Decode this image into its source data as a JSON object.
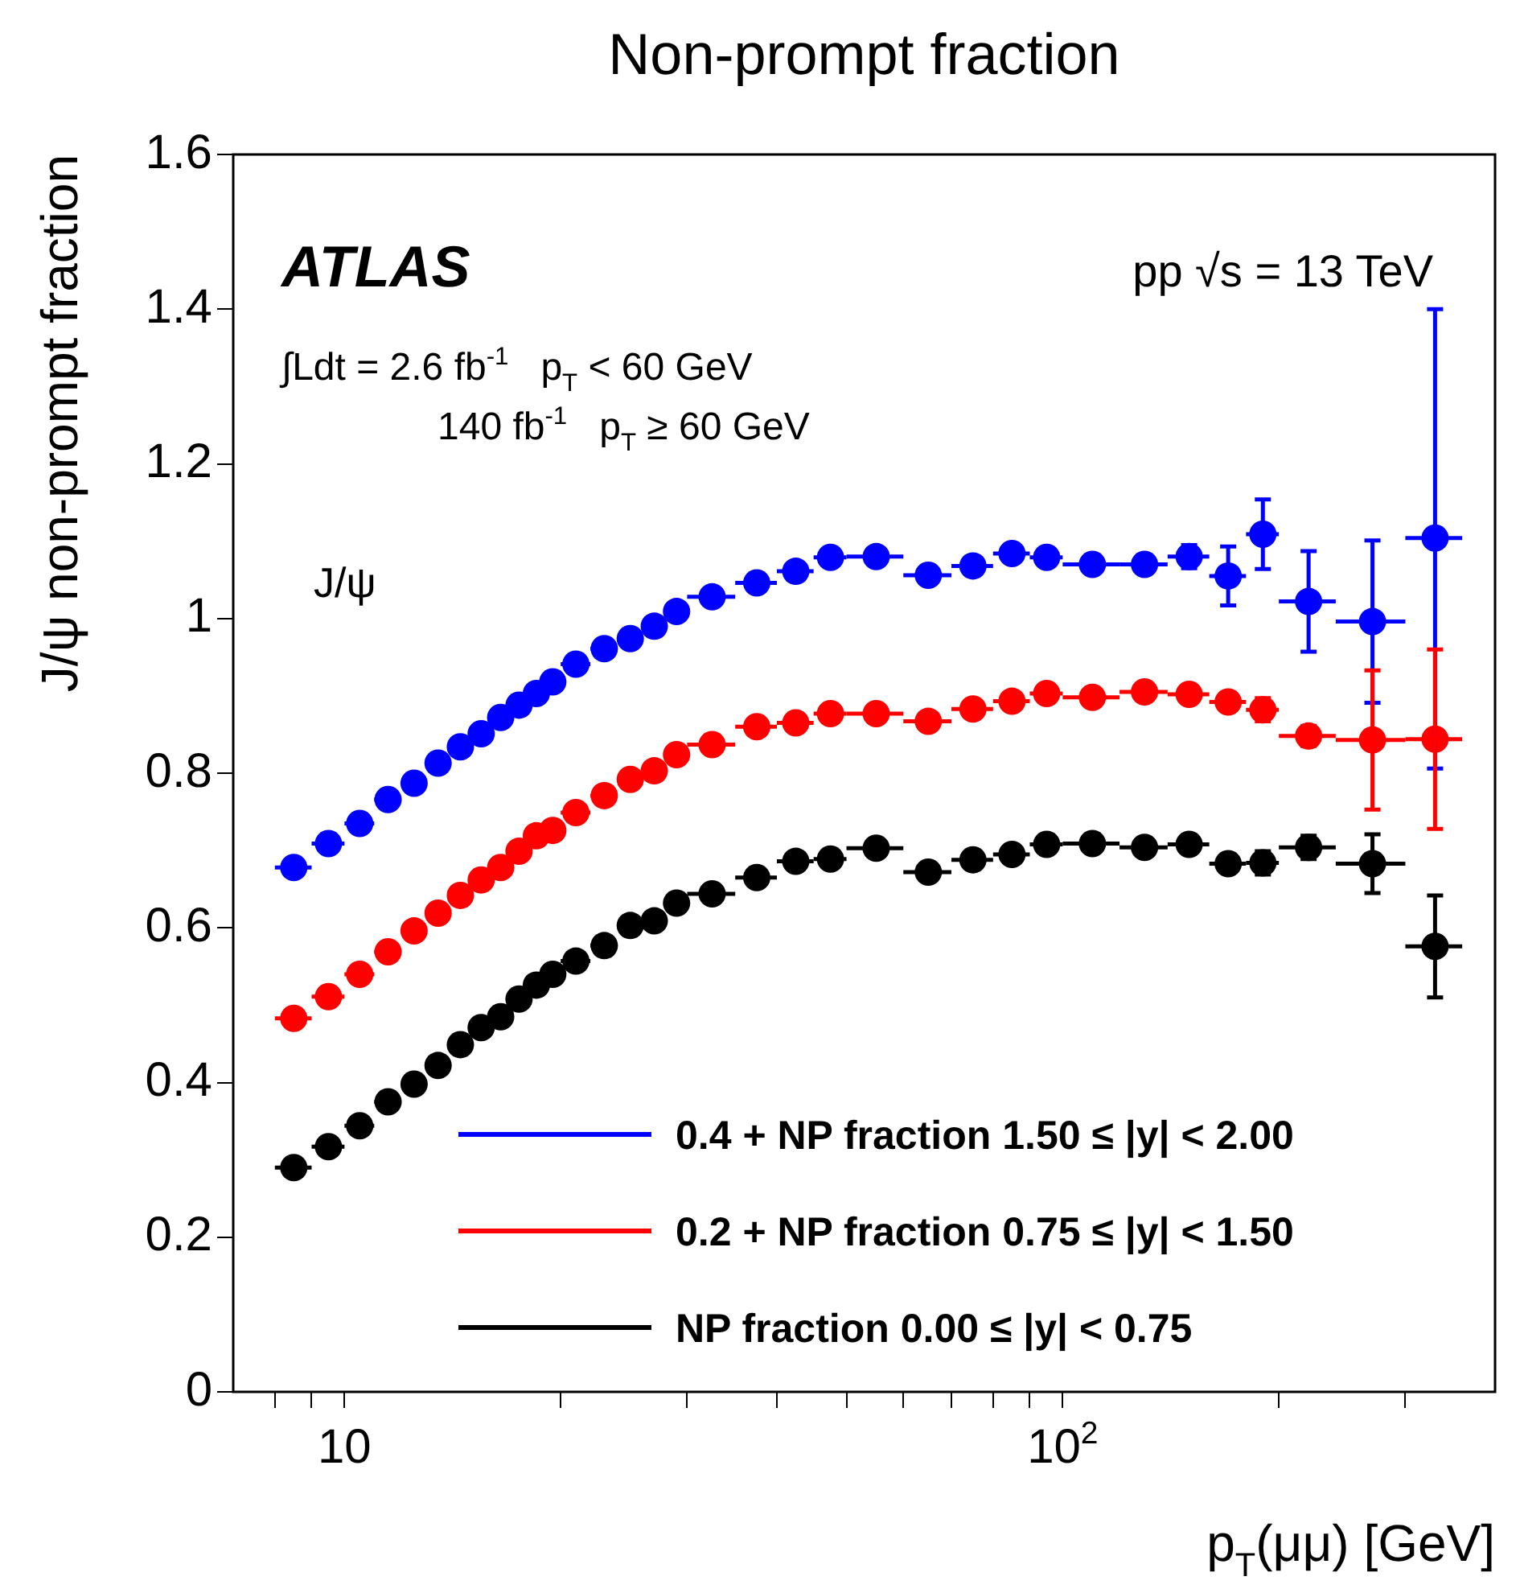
{
  "chart_data": {
    "type": "scatter",
    "title": "Non-prompt fraction",
    "xlabel": "p$_{T}$(μμ) [GeV]",
    "ylabel": "J/ψ non-prompt fraction",
    "annotations": [
      "ATLAS",
      "pp √s = 13 TeV",
      "∫Ldt = 2.6 fb$^{-1}$   p$_{T}$ < 60 GeV",
      "140 fb$^{-1}$   p$_{T}$ ≥ 60 GeV",
      "J/ψ"
    ],
    "x": [
      8.5,
      9.5,
      10.5,
      11.5,
      12.5,
      13.5,
      14.5,
      15.5,
      16.5,
      17.5,
      18.5,
      19.5,
      21,
      23,
      25,
      27,
      29,
      32.5,
      37.5,
      42.5,
      47.5,
      55,
      65,
      75,
      85,
      95,
      110,
      130,
      150,
      170,
      190,
      220,
      270,
      330
    ],
    "series": [
      {
        "name": "0.4 + NP fraction 1.50 ≤ |y| < 2.00",
        "color": "#0000ff",
        "values": [
          0.678,
          0.709,
          0.735,
          0.766,
          0.787,
          0.813,
          0.834,
          0.851,
          0.872,
          0.888,
          0.903,
          0.918,
          0.941,
          0.961,
          0.974,
          0.99,
          1.009,
          1.028,
          1.046,
          1.061,
          1.079,
          1.08,
          1.056,
          1.068,
          1.084,
          1.079,
          1.07,
          1.07,
          1.08,
          1.055,
          1.109,
          1.022,
          0.996,
          1.104
        ],
        "xerrors": [
          0.5,
          0.5,
          0.5,
          0.5,
          0.5,
          0.5,
          0.5,
          0.5,
          0.5,
          0.5,
          0.5,
          0.5,
          1,
          1,
          1,
          1,
          1,
          2.5,
          2.5,
          2.5,
          2.5,
          5,
          5,
          5,
          5,
          5,
          10,
          10,
          10,
          10,
          10,
          20,
          30,
          30
        ],
        "errors": [
          null,
          null,
          null,
          null,
          null,
          null,
          null,
          null,
          null,
          null,
          null,
          null,
          null,
          null,
          null,
          null,
          null,
          null,
          null,
          null,
          null,
          null,
          null,
          null,
          null,
          null,
          null,
          null,
          0.015,
          0.038,
          0.045,
          0.065,
          0.105,
          [
            0.806,
            1.4
          ]
        ]
      },
      {
        "name": "0.2 + NP fraction 0.75 ≤ |y| < 1.50",
        "color": "#ff0000",
        "values": [
          0.483,
          0.511,
          0.54,
          0.569,
          0.596,
          0.619,
          0.642,
          0.662,
          0.678,
          0.699,
          0.719,
          0.726,
          0.749,
          0.771,
          0.792,
          0.803,
          0.824,
          0.837,
          0.86,
          0.865,
          0.877,
          0.877,
          0.867,
          0.883,
          0.893,
          0.903,
          0.898,
          0.905,
          0.902,
          0.892,
          0.882,
          0.848,
          0.843,
          0.844
        ],
        "xerrors": [
          0.5,
          0.5,
          0.5,
          0.5,
          0.5,
          0.5,
          0.5,
          0.5,
          0.5,
          0.5,
          0.5,
          0.5,
          1,
          1,
          1,
          1,
          1,
          2.5,
          2.5,
          2.5,
          2.5,
          5,
          5,
          5,
          5,
          5,
          10,
          10,
          10,
          10,
          10,
          20,
          30,
          30
        ],
        "errors": [
          null,
          null,
          null,
          null,
          null,
          null,
          null,
          null,
          null,
          null,
          null,
          null,
          null,
          null,
          null,
          null,
          null,
          null,
          null,
          null,
          null,
          null,
          null,
          null,
          null,
          null,
          null,
          null,
          null,
          null,
          0.015,
          0.013,
          0.09,
          [
            0.728,
            0.96
          ]
        ]
      },
      {
        "name": "NP fraction 0.00 ≤ |y| < 0.75",
        "color": "#000000",
        "values": [
          0.29,
          0.317,
          0.344,
          0.375,
          0.398,
          0.422,
          0.449,
          0.471,
          0.485,
          0.508,
          0.526,
          0.54,
          0.557,
          0.577,
          0.603,
          0.609,
          0.632,
          0.644,
          0.665,
          0.686,
          0.689,
          0.703,
          0.672,
          0.688,
          0.695,
          0.708,
          0.709,
          0.704,
          0.708,
          0.683,
          0.684,
          0.704,
          0.683,
          0.576
        ],
        "xerrors": [
          0.5,
          0.5,
          0.5,
          0.5,
          0.5,
          0.5,
          0.5,
          0.5,
          0.5,
          0.5,
          0.5,
          0.5,
          1,
          1,
          1,
          1,
          1,
          2.5,
          2.5,
          2.5,
          2.5,
          5,
          5,
          5,
          5,
          5,
          10,
          10,
          10,
          10,
          10,
          20,
          30,
          30
        ],
        "errors": [
          null,
          null,
          null,
          null,
          null,
          null,
          null,
          null,
          null,
          null,
          null,
          null,
          null,
          null,
          null,
          null,
          null,
          null,
          null,
          null,
          null,
          null,
          null,
          null,
          null,
          null,
          null,
          null,
          null,
          null,
          0.015,
          0.015,
          0.038,
          0.066
        ]
      }
    ],
    "log": "x",
    "xlim": [
      7,
      400
    ],
    "xticks": [
      {
        "value": 8,
        "label": null
      },
      {
        "value": 9,
        "label": null
      },
      {
        "value": 10,
        "label": "10"
      },
      {
        "value": 20,
        "label": null
      },
      {
        "value": 30,
        "label": null
      },
      {
        "value": 40,
        "label": null
      },
      {
        "value": 50,
        "label": null
      },
      {
        "value": 60,
        "label": null
      },
      {
        "value": 70,
        "label": null
      },
      {
        "value": 80,
        "label": null
      },
      {
        "value": 90,
        "label": null
      },
      {
        "value": 100,
        "label": "10$^{2}$"
      },
      {
        "value": 200,
        "label": null
      },
      {
        "value": 300,
        "label": null
      }
    ],
    "ylim": [
      0,
      1.6
    ],
    "yticks": [
      0,
      0.2,
      0.4,
      0.6,
      0.8,
      1,
      1.2,
      1.4,
      1.6
    ],
    "grid": false,
    "legend": "bottom right",
    "marker": "circle"
  }
}
